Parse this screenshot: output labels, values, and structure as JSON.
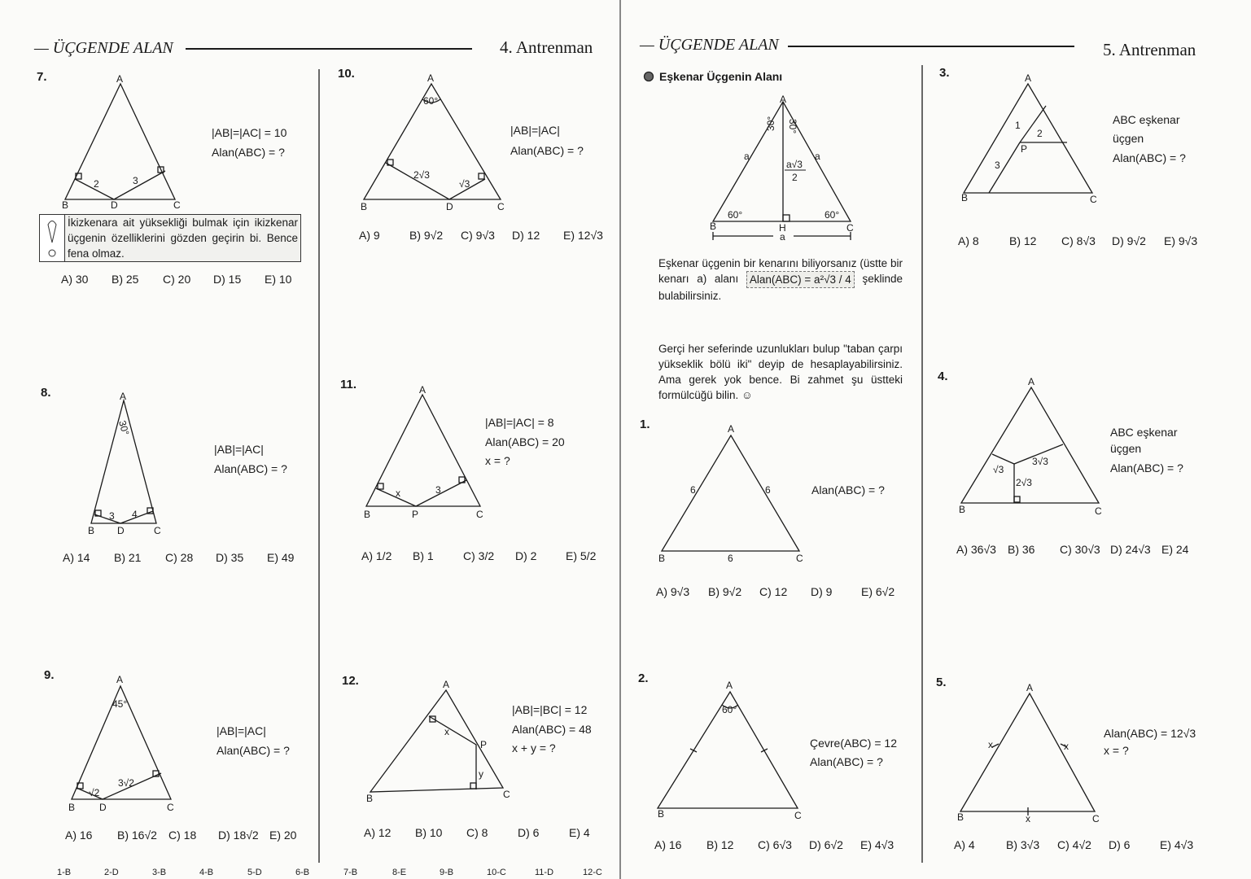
{
  "left_page": {
    "header": {
      "title": "— ÜÇGENDE ALAN",
      "section": "4. Antrenman"
    },
    "problems": [
      {
        "number": "7.",
        "givens": [
          "|AB|=|AC| = 10",
          "Alan(ABC) = ?"
        ],
        "labels": [
          "A",
          "B",
          "D",
          "C",
          "2",
          "3"
        ],
        "tip": "İkizkenara ait yüksekliği bulmak için ikizkenar üçgenin özelliklerini gözden geçirin bi. Bence fena olmaz.",
        "choices": [
          "A) 30",
          "B) 25",
          "C) 20",
          "D) 15",
          "E) 10"
        ]
      },
      {
        "number": "8.",
        "givens": [
          "|AB|=|AC|",
          "Alan(ABC) = ?"
        ],
        "labels": [
          "A",
          "B",
          "D",
          "C",
          "30°",
          "3",
          "4"
        ],
        "choices": [
          "A) 14",
          "B) 21",
          "C) 28",
          "D) 35",
          "E) 49"
        ]
      },
      {
        "number": "9.",
        "givens": [
          "|AB|=|AC|",
          "Alan(ABC) = ?"
        ],
        "labels": [
          "A",
          "B",
          "D",
          "C",
          "45°",
          "√2",
          "3√2"
        ],
        "choices": [
          "A) 16",
          "B) 16√2",
          "C) 18",
          "D) 18√2",
          "E) 20"
        ]
      },
      {
        "number": "10.",
        "givens": [
          "|AB|=|AC|",
          "Alan(ABC) = ?"
        ],
        "labels": [
          "A",
          "B",
          "D",
          "C",
          "60°",
          "2√3",
          "√3"
        ],
        "choices": [
          "A) 9",
          "B) 9√2",
          "C) 9√3",
          "D) 12",
          "E) 12√3"
        ]
      },
      {
        "number": "11.",
        "givens": [
          "|AB|=|AC| = 8",
          "Alan(ABC) = 20",
          "x = ?"
        ],
        "labels": [
          "A",
          "B",
          "P",
          "C",
          "x",
          "3"
        ],
        "choices": [
          "A) 1/2",
          "B) 1",
          "C) 3/2",
          "D) 2",
          "E) 5/2"
        ]
      },
      {
        "number": "12.",
        "givens": [
          "|AB|=|BC| = 12",
          "Alan(ABC) = 48",
          "x + y = ?"
        ],
        "labels": [
          "A",
          "B",
          "P",
          "C",
          "x",
          "y"
        ],
        "choices": [
          "A) 12",
          "B) 10",
          "C) 8",
          "D) 6",
          "E) 4"
        ]
      }
    ]
  },
  "right_page": {
    "header": {
      "title": "— ÜÇGENDE ALAN",
      "section": "5. Antrenman"
    },
    "intro": {
      "heading": "Eşkenar Üçgenin Alanı",
      "figure_labels": [
        "A",
        "B",
        "C",
        "H",
        "a",
        "a",
        "a",
        "30°",
        "30°",
        "60°",
        "60°",
        "a√3",
        "2"
      ],
      "para1_a": "Eşkenar üçgenin bir kenarını biliyorsanız (üstte bir kenarı a) alanı",
      "formula": "Alan(ABC) = a²√3 / 4",
      "para1_b": "şeklinde bulabilirsiniz.",
      "para2": "Gerçi her seferinde uzunlukları bulup \"taban çarpı yükseklik bölü iki\" deyip de hesaplayabilirsiniz. Ama gerek yok bence. Bi zahmet şu üstteki formülcüğü bilin. ☺"
    },
    "problems": [
      {
        "number": "1.",
        "givens": [
          "Alan(ABC) = ?"
        ],
        "labels": [
          "A",
          "B",
          "C",
          "6",
          "6",
          "6"
        ],
        "choices": [
          "A) 9√3",
          "B) 9√2",
          "C) 12",
          "D) 9",
          "E) 6√2"
        ]
      },
      {
        "number": "2.",
        "givens": [
          "Çevre(ABC) = 12",
          "Alan(ABC) = ?"
        ],
        "labels": [
          "A",
          "B",
          "C",
          "60°"
        ],
        "choices": [
          "A) 16",
          "B) 12",
          "C) 6√3",
          "D) 6√2",
          "E) 4√3"
        ]
      },
      {
        "number": "3.",
        "givens": [
          "ABC eşkenar",
          "üçgen",
          "Alan(ABC) = ?"
        ],
        "labels": [
          "A",
          "B",
          "C",
          "P",
          "1",
          "2",
          "3"
        ],
        "choices": [
          "A) 8",
          "B) 12",
          "C) 8√3",
          "D) 9√2",
          "E) 9√3"
        ]
      },
      {
        "number": "4.",
        "givens": [
          "ABC eşkenar",
          "üçgen",
          "Alan(ABC) = ?"
        ],
        "labels": [
          "A",
          "B",
          "C",
          "√3",
          "3√3",
          "2√3"
        ],
        "choices": [
          "A) 36√3",
          "B) 36",
          "C) 30√3",
          "D) 24√3",
          "E) 24"
        ]
      },
      {
        "number": "5.",
        "givens": [
          "Alan(ABC) = 12√3",
          "x = ?"
        ],
        "labels": [
          "A",
          "B",
          "C",
          "x",
          "x",
          "x"
        ],
        "choices": [
          "A) 4",
          "B) 3√3",
          "C) 4√2",
          "D) 6",
          "E) 4√3"
        ]
      }
    ]
  },
  "answer_key": [
    "1-B",
    "2-D",
    "3-B",
    "4-B",
    "5-D",
    "6-B",
    "7-B",
    "8-E",
    "9-B",
    "10-C",
    "11-D",
    "12-C"
  ],
  "colors": {
    "ink": "#1a1a1a",
    "paper": "#fbfbf9",
    "tip_fill": "#f1f1ee"
  }
}
